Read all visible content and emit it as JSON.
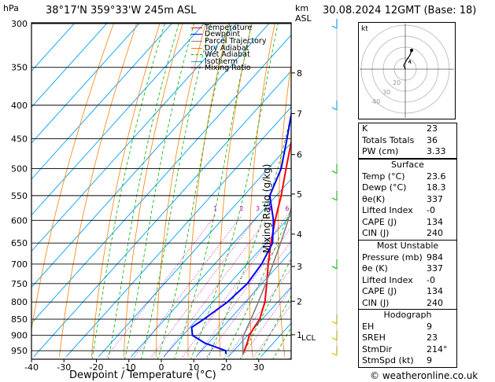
{
  "header": {
    "hpa_label": "hPa",
    "location": "38°17'N  359°33'W  245m  ASL",
    "km_label": "km",
    "asl_label": "ASL",
    "datetime": "30.08.2024  12GMT  (Base: 18)"
  },
  "footer": {
    "xlabel": "Dewpoint / Temperature (°C)",
    "ylabel_right": "Mixing Ratio (g/kg)",
    "copyright": "© weatheronline.co.uk"
  },
  "legend": [
    {
      "label": "Temperature",
      "color": "#ff0000",
      "dash": "solid"
    },
    {
      "label": "Dewpoint",
      "color": "#0000ff",
      "dash": "solid"
    },
    {
      "label": "Parcel Trajectory",
      "color": "#808080",
      "dash": "solid"
    },
    {
      "label": "Dry Adiabat",
      "color": "#ff8000",
      "dash": "solid"
    },
    {
      "label": "Wet Adiabat",
      "color": "#00b000",
      "dash": "dashed"
    },
    {
      "label": "Isotherm",
      "color": "#00a0ff",
      "dash": "solid"
    },
    {
      "label": "Mixing Ratio",
      "color": "#c000c0",
      "dash": "dotted"
    }
  ],
  "colors": {
    "temperature": "#ff0000",
    "dewpoint": "#0000ff",
    "parcel": "#808080",
    "dry_adiabat": "#ff8000",
    "wet_adiabat": "#00b000",
    "isotherm": "#00a0ff",
    "mixing_ratio": "#c000c0",
    "wind_barb": "#00cc00"
  },
  "chart_data": {
    "type": "line",
    "title": "",
    "xlabel": "Dewpoint / Temperature (°C)",
    "ylabel": "hPa",
    "xlim": [
      -40,
      40
    ],
    "ylim": [
      300,
      970
    ],
    "x_ticks": [
      -40,
      -30,
      -20,
      -10,
      0,
      10,
      20,
      30
    ],
    "pressure_ticks": [
      300,
      350,
      400,
      450,
      500,
      550,
      600,
      650,
      700,
      750,
      800,
      850,
      900,
      950
    ],
    "km_ticks": [
      {
        "label": "8",
        "p": 357
      },
      {
        "label": "7",
        "p": 412
      },
      {
        "label": "6",
        "p": 476
      },
      {
        "label": "5",
        "p": 547
      },
      {
        "label": "4",
        "p": 630
      },
      {
        "label": "3",
        "p": 706
      },
      {
        "label": "2",
        "p": 798
      },
      {
        "label": "1",
        "p": 898
      }
    ],
    "lcl": {
      "label": "LCL",
      "p": 906
    },
    "mixing_ratio_labels": [
      "1",
      "2",
      "3",
      "4",
      "6",
      "8",
      "10",
      "15",
      "20",
      "25"
    ],
    "mixing_ratio_values": [
      1,
      2,
      3,
      4,
      6,
      8,
      10,
      15,
      20,
      25
    ],
    "series": [
      {
        "name": "Temperature",
        "points": [
          [
            960,
            23.6
          ],
          [
            950,
            23.2
          ],
          [
            925,
            22.0
          ],
          [
            900,
            20.5
          ],
          [
            875,
            19.8
          ],
          [
            850,
            19.2
          ],
          [
            800,
            16.0
          ],
          [
            750,
            11.5
          ],
          [
            700,
            6.5
          ],
          [
            650,
            1.5
          ],
          [
            600,
            -3.5
          ],
          [
            550,
            -8.5
          ],
          [
            500,
            -14.5
          ],
          [
            450,
            -21.0
          ],
          [
            400,
            -28.5
          ],
          [
            350,
            -38.0
          ],
          [
            300,
            -48.0
          ]
        ]
      },
      {
        "name": "Dewpoint",
        "points": [
          [
            960,
            18.3
          ],
          [
            950,
            17.5
          ],
          [
            925,
            9.0
          ],
          [
            900,
            3.0
          ],
          [
            875,
            0.5
          ],
          [
            850,
            2.0
          ],
          [
            800,
            4.5
          ],
          [
            750,
            5.5
          ],
          [
            700,
            4.5
          ],
          [
            650,
            2.0
          ],
          [
            600,
            -4.0
          ],
          [
            550,
            -12.0
          ],
          [
            500,
            -16.0
          ],
          [
            450,
            -22.5
          ],
          [
            400,
            -30.0
          ],
          [
            350,
            -39.0
          ],
          [
            300,
            -49.0
          ]
        ]
      },
      {
        "name": "Parcel Trajectory",
        "points": [
          [
            960,
            23.6
          ],
          [
            906,
            19.0
          ],
          [
            850,
            16.5
          ],
          [
            800,
            14.0
          ],
          [
            750,
            11.2
          ],
          [
            700,
            8.0
          ],
          [
            650,
            4.5
          ],
          [
            600,
            0.5
          ],
          [
            550,
            -4.5
          ],
          [
            500,
            -10.0
          ],
          [
            450,
            -17.0
          ],
          [
            400,
            -25.0
          ],
          [
            350,
            -35.0
          ],
          [
            300,
            -46.0
          ]
        ]
      }
    ],
    "indices": [
      {
        "label": "K",
        "value": "23"
      },
      {
        "label": "Totals Totals",
        "value": "36"
      },
      {
        "label": "PW (cm)",
        "value": "3.33"
      }
    ],
    "surface": {
      "title": "Surface",
      "rows": [
        {
          "label": "Temp (°C)",
          "value": "23.6"
        },
        {
          "label": "Dewp (°C)",
          "value": "18.3"
        },
        {
          "label": "θe(K)",
          "value": "337"
        },
        {
          "label": "Lifted Index",
          "value": "-0"
        },
        {
          "label": "CAPE (J)",
          "value": "134"
        },
        {
          "label": "CIN (J)",
          "value": "240"
        }
      ]
    },
    "most_unstable": {
      "title": "Most Unstable",
      "rows": [
        {
          "label": "Pressure (mb)",
          "value": "984"
        },
        {
          "label": "θe (K)",
          "value": "337"
        },
        {
          "label": "Lifted Index",
          "value": "-0"
        },
        {
          "label": "CAPE (J)",
          "value": "134"
        },
        {
          "label": "CIN (J)",
          "value": "240"
        }
      ]
    },
    "hodograph": {
      "title": "Hodograph",
      "kt_label": "kt",
      "ring_labels": [
        "40",
        "30",
        "20"
      ],
      "rows": [
        {
          "label": "EH",
          "value": "9"
        },
        {
          "label": "SREH",
          "value": "23"
        },
        {
          "label": "StmDir",
          "value": "214°"
        },
        {
          "label": "StmSpd (kt)",
          "value": "9"
        }
      ]
    }
  }
}
